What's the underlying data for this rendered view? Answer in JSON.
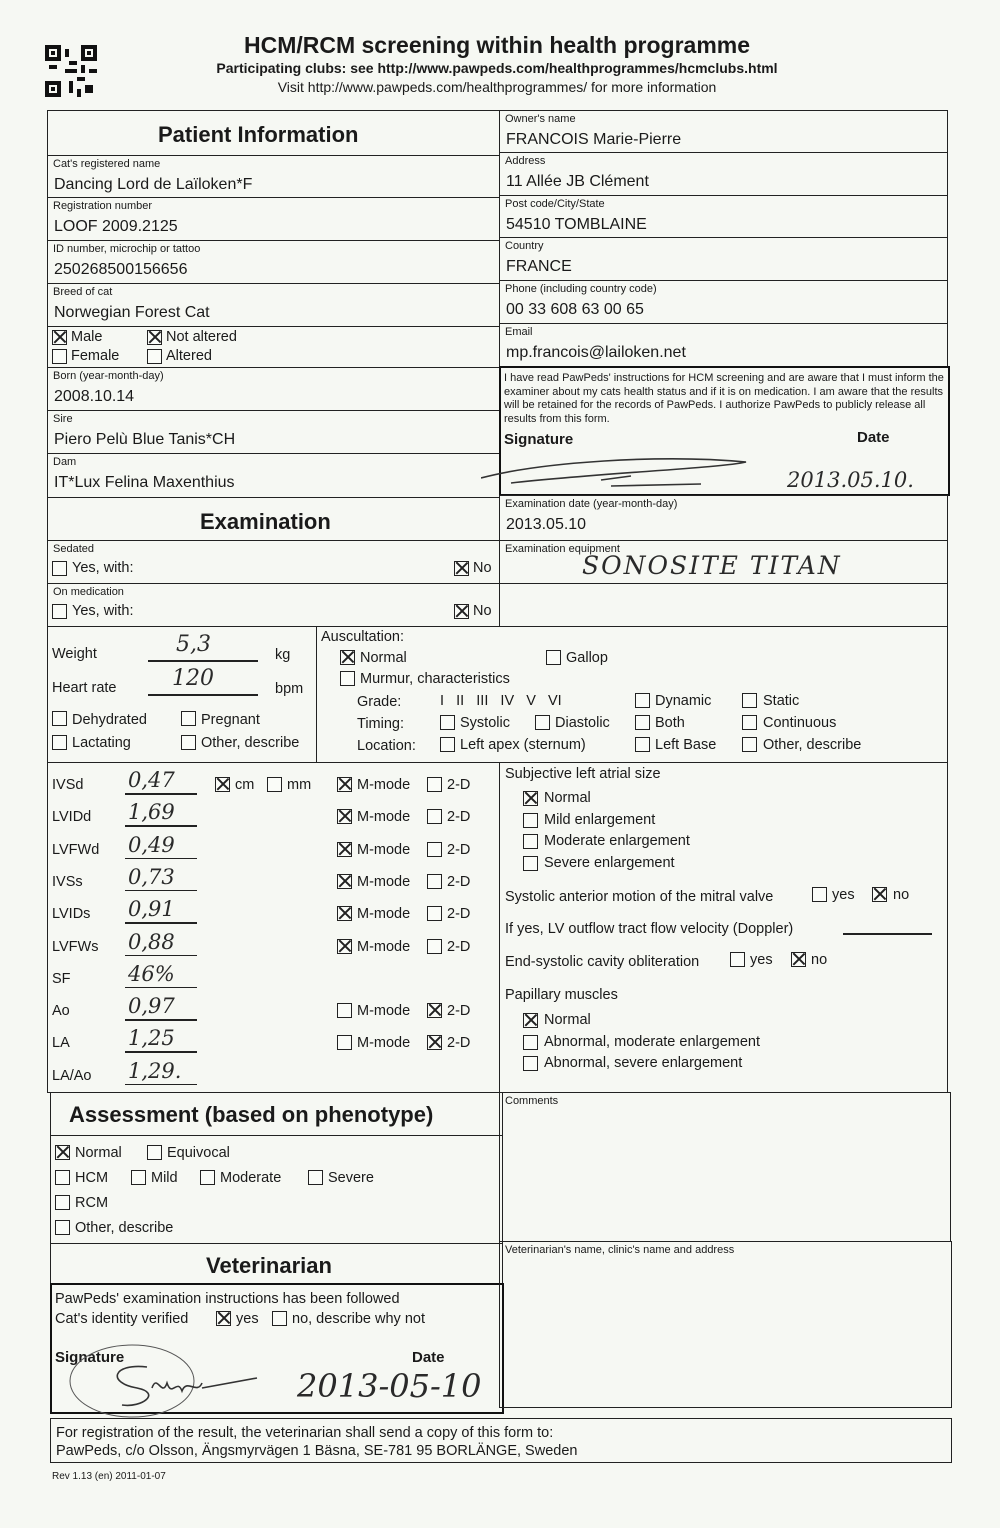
{
  "header": {
    "title": "HCM/RCM screening within health programme",
    "subtitle": "Participating clubs: see http://www.pawpeds.com/healthprogrammes/hcmclubs.html",
    "info": "Visit http://www.pawpeds.com/healthprogrammes/ for more information",
    "qr_icon": "qr-code"
  },
  "patient": {
    "heading": "Patient Information",
    "cat_name": {
      "label": "Cat's registered name",
      "value": "Dancing Lord de Laïloken*F"
    },
    "reg": {
      "label": "Registration number",
      "value": "LOOF 2009.2125"
    },
    "id": {
      "label": "ID number, microchip or tattoo",
      "value": "250268500156656"
    },
    "breed": {
      "label": "Breed of cat",
      "value": "Norwegian Forest Cat"
    },
    "sex": {
      "male": {
        "label": "Male",
        "checked": true
      },
      "not_altered": {
        "label": "Not altered",
        "checked": true
      },
      "female": {
        "label": "Female",
        "checked": false
      },
      "altered": {
        "label": "Altered",
        "checked": false
      }
    },
    "born": {
      "label": "Born (year-month-day)",
      "value": "2008.10.14"
    },
    "sire": {
      "label": "Sire",
      "value": "Piero Pelù Blue Tanis*CH"
    },
    "dam": {
      "label": "Dam",
      "value": "IT*Lux Felina Maxenthius"
    }
  },
  "owner": {
    "name": {
      "label": "Owner's name",
      "value": "FRANCOIS Marie-Pierre"
    },
    "address": {
      "label": "Address",
      "value": "11 Allée JB Clément"
    },
    "post": {
      "label": "Post code/City/State",
      "value": "54510 TOMBLAINE"
    },
    "country": {
      "label": "Country",
      "value": "FRANCE"
    },
    "phone": {
      "label": "Phone (including country code)",
      "value": "00 33 608 63 00 65"
    },
    "email": {
      "label": "Email",
      "value": "mp.francois@lailoken.net"
    },
    "consent": {
      "text": "I have read PawPeds' instructions for HCM screening and are aware that I must inform the examiner about my cats health status and if it is on medication. I am aware that the results will be retained for the records of PawPeds. I authorize PawPeds to publicly release all results from this form.",
      "signature_label": "Signature",
      "date_label": "Date",
      "date_value": "2013.05.10."
    }
  },
  "exam": {
    "heading": "Examination",
    "date": {
      "label": "Examination date (year-month-day)",
      "value": "2013.05.10"
    },
    "sedated": {
      "label": "Sedated",
      "yes": "Yes, with:",
      "no": "No",
      "yes_checked": false,
      "no_checked": true
    },
    "medication": {
      "label": "On medication",
      "yes": "Yes, with:",
      "no": "No",
      "yes_checked": false,
      "no_checked": true
    },
    "equipment": {
      "label": "Examination equipment",
      "value": "SONOSITE TITAN"
    }
  },
  "vitals": {
    "weight": {
      "label": "Weight",
      "value": "5,3",
      "unit": "kg"
    },
    "heart_rate": {
      "label": "Heart rate",
      "value": "120",
      "unit": "bpm"
    },
    "dehydrated": {
      "label": "Dehydrated",
      "checked": false
    },
    "pregnant": {
      "label": "Pregnant",
      "checked": false
    },
    "lactating": {
      "label": "Lactating",
      "checked": false
    },
    "other": {
      "label": "Other, describe",
      "checked": false
    }
  },
  "auscultation": {
    "label": "Auscultation:",
    "normal": {
      "label": "Normal",
      "checked": true
    },
    "gallop": {
      "label": "Gallop",
      "checked": false
    },
    "murmur": {
      "label": "Murmur, characteristics",
      "checked": false
    },
    "grade_label": "Grade:",
    "grades": "I   II   III   IV   V   VI",
    "dynamic": "Dynamic",
    "static": "Static",
    "timing_label": "Timing:",
    "systolic": "Systolic",
    "diastolic": "Diastolic",
    "both": "Both",
    "continuous": "Continuous",
    "location_label": "Location:",
    "left_apex": "Left apex (sternum)",
    "left_base": "Left Base",
    "other": "Other, describe"
  },
  "measurements": {
    "unit_cm": {
      "label": "cm",
      "checked": true
    },
    "unit_mm": {
      "label": "mm",
      "checked": false
    },
    "mmode_label": "M-mode",
    "twod_label": "2-D",
    "rows": [
      {
        "label": "IVSd",
        "value": "0,47",
        "mmode": true,
        "twod": false
      },
      {
        "label": "LVIDd",
        "value": "1,69",
        "mmode": true,
        "twod": false
      },
      {
        "label": "LVFWd",
        "value": "0,49",
        "mmode": true,
        "twod": false
      },
      {
        "label": "IVSs",
        "value": "0,73",
        "mmode": true,
        "twod": false
      },
      {
        "label": "LVIDs",
        "value": "0,91",
        "mmode": true,
        "twod": false
      },
      {
        "label": "LVFWs",
        "value": "0,88",
        "mmode": true,
        "twod": false
      },
      {
        "label": "SF",
        "value": "46%"
      },
      {
        "label": "Ao",
        "value": "0,97",
        "mmode": false,
        "twod": true
      },
      {
        "label": "LA",
        "value": "1,25",
        "mmode": false,
        "twod": true
      },
      {
        "label": "LA/Ao",
        "value": "1,29."
      }
    ]
  },
  "atrial": {
    "label": "Subjective left atrial size",
    "options": [
      {
        "label": "Normal",
        "checked": true
      },
      {
        "label": "Mild enlargement",
        "checked": false
      },
      {
        "label": "Moderate enlargement",
        "checked": false
      },
      {
        "label": "Severe enlargement",
        "checked": false
      }
    ],
    "sam": {
      "label": "Systolic anterior motion of the mitral valve",
      "yes": "yes",
      "no": "no",
      "no_checked": true
    },
    "lvot": {
      "label": "If yes, LV outflow tract flow velocity (Doppler)"
    },
    "esco": {
      "label": "End-systolic cavity obliteration",
      "yes": "yes",
      "no": "no",
      "no_checked": true
    },
    "papillary": {
      "label": "Papillary muscles",
      "options": [
        {
          "label": "Normal",
          "checked": true
        },
        {
          "label": "Abnormal, moderate enlargement",
          "checked": false
        },
        {
          "label": "Abnormal, severe enlargement",
          "checked": false
        }
      ]
    }
  },
  "assessment": {
    "heading": "Assessment (based on phenotype)",
    "normal": {
      "label": "Normal",
      "checked": true
    },
    "equivocal": "Equivocal",
    "hcm": "HCM",
    "mild": "Mild",
    "moderate": "Moderate",
    "severe": "Severe",
    "rcm": "RCM",
    "other": "Other, describe"
  },
  "comments": {
    "label": "Comments"
  },
  "vet": {
    "heading": "Veterinarian",
    "instructions": "PawPeds' examination instructions has been followed",
    "identity_label": "Cat's identity verified",
    "yes": "yes",
    "no": "no, describe why not",
    "yes_checked": true,
    "signature_label": "Signature",
    "date_label": "Date",
    "date_value": "2013-05-10",
    "name_label": "Veterinarian's name, clinic's name and address"
  },
  "footer": {
    "line1": "For registration of the result, the veterinarian shall send a copy of this form to:",
    "line2": "PawPeds, c/o Olsson, Ängsmyrvägen 1 Bäsna, SE-781 95 BORLÄNGE, Sweden",
    "revision": "Rev 1.13 (en) 2011-01-07"
  }
}
